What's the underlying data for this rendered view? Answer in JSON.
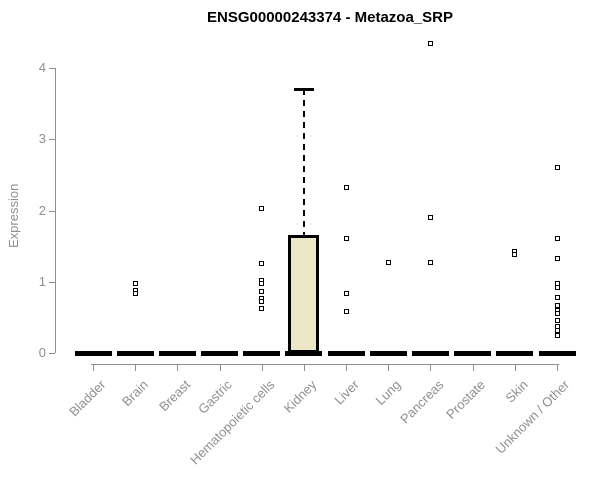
{
  "chart_data": {
    "type": "boxplot",
    "title": "ENSG00000243374 - Metazoa_SRP",
    "ylabel": "Expression",
    "xlabel": "",
    "ylim": [
      0,
      4
    ],
    "yticks": [
      0,
      1,
      2,
      3,
      4
    ],
    "grid": false,
    "legend": "none",
    "categories": [
      "Bladder",
      "Brain",
      "Breast",
      "Gastric",
      "Hematopoietic cells",
      "Kidney",
      "Liver",
      "Lung",
      "Pancreas",
      "Prostate",
      "Skin",
      "Unknown / Other"
    ],
    "boxes": [
      {
        "category": "Bladder",
        "median": 0,
        "q1": 0,
        "q3": 0,
        "whisker_low": 0,
        "whisker_high": 0
      },
      {
        "category": "Brain",
        "median": 0,
        "q1": 0,
        "q3": 0,
        "whisker_low": 0,
        "whisker_high": 0
      },
      {
        "category": "Breast",
        "median": 0,
        "q1": 0,
        "q3": 0,
        "whisker_low": 0,
        "whisker_high": 0
      },
      {
        "category": "Gastric",
        "median": 0,
        "q1": 0,
        "q3": 0,
        "whisker_low": 0,
        "whisker_high": 0
      },
      {
        "category": "Hematopoietic cells",
        "median": 0,
        "q1": 0,
        "q3": 0,
        "whisker_low": 0,
        "whisker_high": 0
      },
      {
        "category": "Kidney",
        "median": 0,
        "q1": 0,
        "q3": 1.65,
        "whisker_low": 0,
        "whisker_high": 3.7
      },
      {
        "category": "Liver",
        "median": 0,
        "q1": 0,
        "q3": 0,
        "whisker_low": 0,
        "whisker_high": 0
      },
      {
        "category": "Lung",
        "median": 0,
        "q1": 0,
        "q3": 0,
        "whisker_low": 0,
        "whisker_high": 0
      },
      {
        "category": "Pancreas",
        "median": 0,
        "q1": 0,
        "q3": 0,
        "whisker_low": 0,
        "whisker_high": 0
      },
      {
        "category": "Prostate",
        "median": 0,
        "q1": 0,
        "q3": 0,
        "whisker_low": 0,
        "whisker_high": 0
      },
      {
        "category": "Skin",
        "median": 0,
        "q1": 0,
        "q3": 0,
        "whisker_low": 0,
        "whisker_high": 0
      },
      {
        "category": "Unknown / Other",
        "median": 0,
        "q1": 0,
        "q3": 0,
        "whisker_low": 0,
        "whisker_high": 0
      }
    ],
    "points": [
      {
        "category": "Brain",
        "values": [
          0.98,
          0.88,
          0.84
        ]
      },
      {
        "category": "Hematopoietic cells",
        "values": [
          2.03,
          1.25,
          1.02,
          0.97,
          0.87,
          0.77,
          0.72,
          0.63
        ]
      },
      {
        "category": "Liver",
        "values": [
          2.32,
          1.61,
          0.84,
          0.58
        ]
      },
      {
        "category": "Lung",
        "values": [
          1.27
        ]
      },
      {
        "category": "Pancreas",
        "values": [
          4.34,
          1.9,
          1.27
        ]
      },
      {
        "category": "Skin",
        "values": [
          1.43,
          1.38
        ]
      },
      {
        "category": "Unknown / Other",
        "values": [
          2.61,
          1.61,
          1.33,
          0.98,
          0.92,
          0.78,
          0.66,
          0.6,
          0.55,
          0.45,
          0.37,
          0.31,
          0.25
        ]
      }
    ],
    "colors": {
      "box_fill": "#ebe6c6",
      "box_border": "#000000",
      "median": "#000000",
      "point": "#000000",
      "axis": "#8f8f8f",
      "tick_label": "#8f8f8f",
      "title": "#000000"
    }
  }
}
